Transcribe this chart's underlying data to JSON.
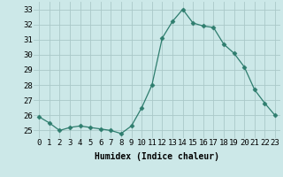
{
  "x": [
    0,
    1,
    2,
    3,
    4,
    5,
    6,
    7,
    8,
    9,
    10,
    11,
    12,
    13,
    14,
    15,
    16,
    17,
    18,
    19,
    20,
    21,
    22,
    23
  ],
  "y": [
    25.9,
    25.5,
    25.0,
    25.2,
    25.3,
    25.2,
    25.1,
    25.0,
    24.8,
    25.3,
    26.5,
    28.0,
    31.1,
    32.2,
    33.0,
    32.1,
    31.9,
    31.8,
    30.7,
    30.1,
    29.2,
    27.7,
    26.8,
    26.0
  ],
  "line_color": "#2e7d6e",
  "marker": "D",
  "marker_size": 2.5,
  "bg_color": "#cce8e8",
  "grid_color": "#aac8c8",
  "xlabel": "Humidex (Indice chaleur)",
  "ylim": [
    24.5,
    33.5
  ],
  "xlim": [
    -0.5,
    23.5
  ],
  "yticks": [
    25,
    26,
    27,
    28,
    29,
    30,
    31,
    32,
    33
  ],
  "xticks": [
    0,
    1,
    2,
    3,
    4,
    5,
    6,
    7,
    8,
    9,
    10,
    11,
    12,
    13,
    14,
    15,
    16,
    17,
    18,
    19,
    20,
    21,
    22,
    23
  ],
  "label_fontsize": 7,
  "tick_fontsize": 6.5
}
